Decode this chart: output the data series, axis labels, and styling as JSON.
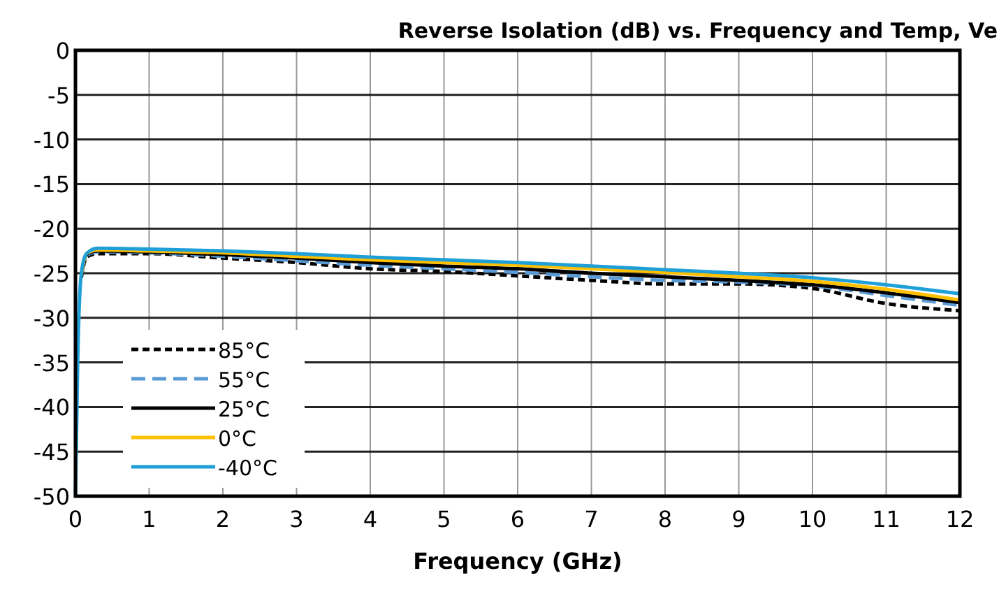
{
  "chart_data": {
    "type": "line",
    "title": "Reverse Isolation (dB) vs. Frequency and Temp, Ve",
    "xlabel": "Frequency (GHz)",
    "x": [
      0,
      0.03,
      0.08,
      0.15,
      0.3,
      1,
      2,
      3,
      4,
      5,
      6,
      7,
      8,
      9,
      10,
      11,
      12
    ],
    "xlim": [
      0,
      12
    ],
    "xticks": [
      0,
      1,
      2,
      3,
      4,
      5,
      6,
      7,
      8,
      9,
      10,
      11,
      12
    ],
    "ylim": [
      -50,
      0
    ],
    "yticks": [
      0,
      -5,
      -10,
      -15,
      -20,
      -25,
      -30,
      -35,
      -40,
      -45,
      -50
    ],
    "grid": true,
    "legend": "bottom left",
    "series": [
      {
        "name": "85°C",
        "color": "#000000",
        "line_style": "dotted",
        "values": [
          null,
          null,
          -25.5,
          -23.2,
          -22.8,
          -22.8,
          -23.3,
          -23.8,
          -24.5,
          -24.8,
          -25.3,
          -25.8,
          -26.2,
          -26.2,
          -26.7,
          -28.4,
          -29.2
        ]
      },
      {
        "name": "55°C",
        "color": "#5b9bd5",
        "line_style": "dashed",
        "values": [
          null,
          null,
          -25.3,
          -23,
          -22.6,
          -22.7,
          -23.1,
          -23.6,
          -24.1,
          -24.5,
          -24.9,
          -25.4,
          -25.8,
          -26,
          -26.4,
          -27.5,
          -28.6
        ]
      },
      {
        "name": "25°C",
        "color": "#000000",
        "line_style": "solid",
        "values": [
          null,
          null,
          -25.2,
          -22.9,
          -22.5,
          -22.6,
          -22.9,
          -23.3,
          -23.8,
          -24.2,
          -24.5,
          -25,
          -25.4,
          -25.8,
          -26.3,
          -27.2,
          -28.3
        ]
      },
      {
        "name": "0°C",
        "color": "#ffc000",
        "line_style": "solid",
        "values": [
          null,
          null,
          -25.1,
          -22.8,
          -22.4,
          -22.5,
          -22.7,
          -23.1,
          -23.5,
          -23.8,
          -24.1,
          -24.5,
          -24.9,
          -25.4,
          -25.9,
          -26.8,
          -28
        ]
      },
      {
        "name": "-40°C",
        "color": "#1f9fd8",
        "line_style": "solid",
        "values": [
          -50,
          -35,
          -25,
          -22.8,
          -22.2,
          -22.3,
          -22.5,
          -22.8,
          -23.2,
          -23.5,
          -23.8,
          -24.2,
          -24.6,
          -25,
          -25.5,
          -26.3,
          -27.3
        ]
      }
    ]
  }
}
